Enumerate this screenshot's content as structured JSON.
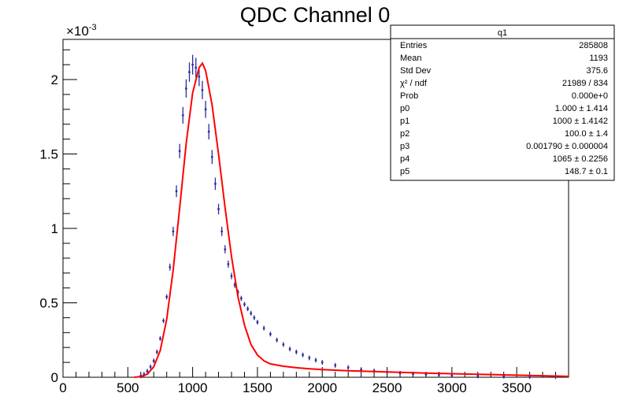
{
  "chart_data": {
    "type": "histogram",
    "title": "QDC Channel 0",
    "xlabel": "",
    "ylabel": "",
    "y_multiplier_label": "×10",
    "y_multiplier_exponent": "-3",
    "xlim": [
      0,
      3900
    ],
    "ylim": [
      0,
      2.27
    ],
    "x_ticks": [
      0,
      500,
      1000,
      1500,
      2000,
      2500,
      3000,
      3500
    ],
    "x_tick_labels": [
      "0",
      "500",
      "1000",
      "1500",
      "2000",
      "2500",
      "3000",
      "3500"
    ],
    "y_ticks": [
      0,
      0.5,
      1,
      1.5,
      2
    ],
    "y_tick_labels": [
      "0",
      "0.5",
      "1",
      "1.5",
      "2"
    ],
    "grid": false,
    "series": [
      {
        "kind": "data-with-errors",
        "color": "#2b2b9c",
        "x": [
          600,
          625,
          650,
          675,
          700,
          725,
          750,
          775,
          800,
          825,
          850,
          875,
          900,
          925,
          950,
          975,
          1000,
          1025,
          1050,
          1075,
          1100,
          1125,
          1150,
          1175,
          1200,
          1225,
          1250,
          1275,
          1300,
          1325,
          1350,
          1375,
          1400,
          1425,
          1450,
          1475,
          1500,
          1550,
          1600,
          1650,
          1700,
          1750,
          1800,
          1850,
          1900,
          1950,
          2000,
          2100,
          2200,
          2300,
          2400,
          2500,
          2600,
          2700,
          2800,
          2900,
          3000,
          3200,
          3400,
          3600,
          3800
        ],
        "y": [
          0.01,
          0.02,
          0.04,
          0.07,
          0.11,
          0.17,
          0.26,
          0.38,
          0.54,
          0.74,
          0.98,
          1.25,
          1.52,
          1.76,
          1.94,
          2.05,
          2.1,
          2.08,
          2.02,
          1.93,
          1.8,
          1.65,
          1.48,
          1.3,
          1.13,
          0.98,
          0.86,
          0.76,
          0.68,
          0.62,
          0.57,
          0.53,
          0.49,
          0.46,
          0.43,
          0.4,
          0.37,
          0.33,
          0.29,
          0.25,
          0.22,
          0.19,
          0.17,
          0.15,
          0.13,
          0.115,
          0.1,
          0.08,
          0.065,
          0.052,
          0.042,
          0.034,
          0.027,
          0.022,
          0.018,
          0.015,
          0.012,
          0.009,
          0.007,
          0.005,
          0.004
        ]
      },
      {
        "kind": "fit",
        "color": "#ff0000",
        "x": [
          550,
          600,
          650,
          700,
          750,
          800,
          850,
          900,
          950,
          1000,
          1050,
          1075,
          1100,
          1150,
          1200,
          1250,
          1300,
          1350,
          1400,
          1450,
          1500,
          1550,
          1600,
          1700,
          1800,
          1900,
          2000,
          2200,
          2400,
          2600,
          2800,
          3000,
          3200,
          3400,
          3600,
          3800,
          3900
        ],
        "y": [
          0,
          0.005,
          0.02,
          0.07,
          0.18,
          0.39,
          0.72,
          1.14,
          1.57,
          1.91,
          2.08,
          2.11,
          2.06,
          1.83,
          1.5,
          1.14,
          0.81,
          0.54,
          0.35,
          0.22,
          0.15,
          0.11,
          0.09,
          0.074,
          0.064,
          0.057,
          0.052,
          0.044,
          0.038,
          0.033,
          0.028,
          0.024,
          0.02,
          0.016,
          0.012,
          0.008,
          0.006
        ]
      }
    ]
  },
  "stats_box": {
    "title": "q1",
    "rows": [
      {
        "label": "Entries",
        "value": "285808"
      },
      {
        "label": "Mean",
        "value": "1193"
      },
      {
        "label": "Std Dev",
        "value": "375.6"
      },
      {
        "label": "χ² / ndf",
        "value": "21989 / 834"
      },
      {
        "label": "Prob",
        "value": "0.000e+0"
      },
      {
        "label": "p0",
        "value": "1.000 ± 1.414"
      },
      {
        "label": "p1",
        "value": "1000 ± 1.4142"
      },
      {
        "label": "p2",
        "value": "100.0 ± 1.4"
      },
      {
        "label": "p3",
        "value": "0.001790 ± 0.000004"
      },
      {
        "label": "p4",
        "value": "1065 ± 0.2256"
      },
      {
        "label": "p5",
        "value": "148.7 ± 0.1"
      }
    ]
  }
}
